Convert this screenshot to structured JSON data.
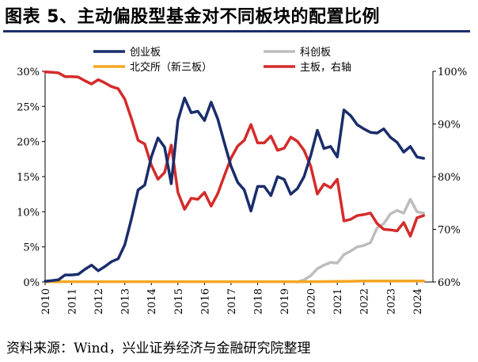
{
  "title": "图表 5、主动偏股型基金对不同板块的配置比例",
  "source": "资料来源：Wind，兴业证券经济与金融研究院整理",
  "colors": {
    "chuangye": "#1a2d6b",
    "kechuang": "#bdbdbd",
    "beijiao": "#f5a623",
    "main": "#d52b2b",
    "title_rule": "#1a2d6b"
  },
  "chart_data": {
    "type": "line",
    "left_axis": {
      "ticks": [
        "0%",
        "5%",
        "10%",
        "15%",
        "20%",
        "25%",
        "30%"
      ],
      "min": 0,
      "max": 30
    },
    "right_axis": {
      "ticks": [
        "60%",
        "70%",
        "80%",
        "90%",
        "100%"
      ],
      "min": 60,
      "max": 100
    },
    "x_ticks": [
      "2010",
      "2011",
      "2012",
      "2013",
      "2014",
      "2015",
      "2016",
      "2017",
      "2018",
      "2019",
      "2020",
      "2021",
      "2022",
      "2023",
      "2024"
    ],
    "x_range": [
      2010,
      2024.6
    ],
    "grid": false,
    "legend_position": "top",
    "series": [
      {
        "name": "创业板",
        "key": "chuangye",
        "axis": "left",
        "points": [
          [
            2010.0,
            0.1
          ],
          [
            2010.25,
            0.2
          ],
          [
            2010.5,
            0.3
          ],
          [
            2010.75,
            1.0
          ],
          [
            2011.0,
            1.0
          ],
          [
            2011.25,
            1.1
          ],
          [
            2011.5,
            1.8
          ],
          [
            2011.75,
            2.4
          ],
          [
            2012.0,
            1.6
          ],
          [
            2012.25,
            2.2
          ],
          [
            2012.5,
            2.9
          ],
          [
            2012.75,
            3.3
          ],
          [
            2013.0,
            5.3
          ],
          [
            2013.25,
            9.0
          ],
          [
            2013.5,
            13.1
          ],
          [
            2013.75,
            13.8
          ],
          [
            2014.0,
            17.8
          ],
          [
            2014.25,
            20.5
          ],
          [
            2014.5,
            19.2
          ],
          [
            2014.75,
            14.0
          ],
          [
            2015.0,
            23.0
          ],
          [
            2015.25,
            26.2
          ],
          [
            2015.5,
            24.1
          ],
          [
            2015.75,
            24.3
          ],
          [
            2016.0,
            23.0
          ],
          [
            2016.25,
            25.6
          ],
          [
            2016.5,
            23.2
          ],
          [
            2016.75,
            19.8
          ],
          [
            2017.0,
            16.5
          ],
          [
            2017.25,
            14.2
          ],
          [
            2017.5,
            13.1
          ],
          [
            2017.75,
            10.1
          ],
          [
            2018.0,
            13.6
          ],
          [
            2018.25,
            13.6
          ],
          [
            2018.5,
            12.3
          ],
          [
            2018.75,
            15.0
          ],
          [
            2019.0,
            14.6
          ],
          [
            2019.25,
            12.5
          ],
          [
            2019.5,
            13.3
          ],
          [
            2019.75,
            15.0
          ],
          [
            2020.0,
            18.0
          ],
          [
            2020.25,
            21.6
          ],
          [
            2020.5,
            19.0
          ],
          [
            2020.75,
            19.3
          ],
          [
            2021.0,
            17.8
          ],
          [
            2021.25,
            24.5
          ],
          [
            2021.5,
            23.7
          ],
          [
            2021.75,
            22.4
          ],
          [
            2022.0,
            21.8
          ],
          [
            2022.25,
            21.3
          ],
          [
            2022.5,
            21.2
          ],
          [
            2022.75,
            21.8
          ],
          [
            2023.0,
            20.6
          ],
          [
            2023.25,
            19.9
          ],
          [
            2023.5,
            18.5
          ],
          [
            2023.75,
            19.3
          ],
          [
            2024.0,
            17.8
          ],
          [
            2024.25,
            17.6
          ]
        ]
      },
      {
        "name": "科创板",
        "key": "kechuang",
        "axis": "left",
        "points": [
          [
            2019.5,
            0.0
          ],
          [
            2019.75,
            0.3
          ],
          [
            2020.0,
            0.9
          ],
          [
            2020.25,
            1.9
          ],
          [
            2020.5,
            2.4
          ],
          [
            2020.75,
            2.8
          ],
          [
            2021.0,
            2.7
          ],
          [
            2021.25,
            3.9
          ],
          [
            2021.5,
            4.4
          ],
          [
            2021.75,
            5.0
          ],
          [
            2022.0,
            5.2
          ],
          [
            2022.25,
            5.6
          ],
          [
            2022.5,
            7.7
          ],
          [
            2022.75,
            8.3
          ],
          [
            2023.0,
            9.7
          ],
          [
            2023.25,
            10.2
          ],
          [
            2023.5,
            9.8
          ],
          [
            2023.75,
            11.8
          ],
          [
            2024.0,
            10.0
          ],
          [
            2024.25,
            9.8
          ]
        ]
      },
      {
        "name": "北交所（新三板）",
        "key": "beijiao",
        "axis": "left",
        "points": [
          [
            2010.0,
            0.05
          ],
          [
            2015.0,
            0.05
          ],
          [
            2020.0,
            0.05
          ],
          [
            2021.5,
            0.1
          ],
          [
            2022.0,
            0.15
          ],
          [
            2024.25,
            0.15
          ]
        ]
      },
      {
        "name": "主板，右轴",
        "key": "main",
        "axis": "right",
        "points": [
          [
            2010.0,
            99.9
          ],
          [
            2010.25,
            99.8
          ],
          [
            2010.5,
            99.7
          ],
          [
            2010.75,
            99.0
          ],
          [
            2011.0,
            99.0
          ],
          [
            2011.25,
            98.9
          ],
          [
            2011.5,
            98.2
          ],
          [
            2011.75,
            97.6
          ],
          [
            2012.0,
            98.4
          ],
          [
            2012.25,
            97.8
          ],
          [
            2012.5,
            97.1
          ],
          [
            2012.75,
            96.7
          ],
          [
            2013.0,
            94.7
          ],
          [
            2013.25,
            91.0
          ],
          [
            2013.5,
            86.9
          ],
          [
            2013.75,
            86.2
          ],
          [
            2014.0,
            82.2
          ],
          [
            2014.25,
            79.5
          ],
          [
            2014.5,
            80.8
          ],
          [
            2014.75,
            86.0
          ],
          [
            2015.0,
            77.0
          ],
          [
            2015.25,
            73.8
          ],
          [
            2015.5,
            75.9
          ],
          [
            2015.75,
            75.7
          ],
          [
            2016.0,
            77.0
          ],
          [
            2016.25,
            74.4
          ],
          [
            2016.5,
            76.8
          ],
          [
            2016.75,
            80.2
          ],
          [
            2017.0,
            83.5
          ],
          [
            2017.25,
            85.8
          ],
          [
            2017.5,
            86.9
          ],
          [
            2017.75,
            89.9
          ],
          [
            2018.0,
            86.4
          ],
          [
            2018.25,
            86.4
          ],
          [
            2018.5,
            87.7
          ],
          [
            2018.75,
            85.0
          ],
          [
            2019.0,
            85.4
          ],
          [
            2019.25,
            87.5
          ],
          [
            2019.5,
            86.7
          ],
          [
            2019.75,
            85.0
          ],
          [
            2020.0,
            82.0
          ],
          [
            2020.25,
            76.7
          ],
          [
            2020.5,
            78.6
          ],
          [
            2020.75,
            77.9
          ],
          [
            2021.0,
            79.5
          ],
          [
            2021.25,
            71.6
          ],
          [
            2021.5,
            71.9
          ],
          [
            2021.75,
            72.6
          ],
          [
            2022.0,
            72.8
          ],
          [
            2022.25,
            73.1
          ],
          [
            2022.5,
            71.1
          ],
          [
            2022.75,
            70.0
          ],
          [
            2023.0,
            69.9
          ],
          [
            2023.25,
            69.7
          ],
          [
            2023.5,
            71.3
          ],
          [
            2023.75,
            68.7
          ],
          [
            2024.0,
            72.2
          ],
          [
            2024.25,
            72.6
          ]
        ]
      }
    ]
  }
}
